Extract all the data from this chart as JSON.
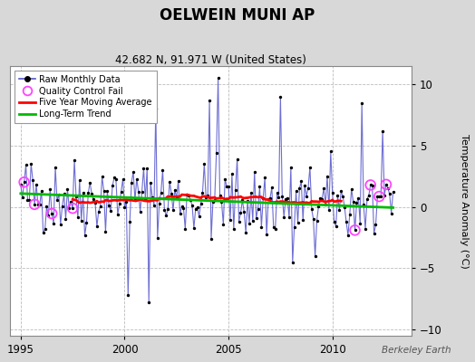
{
  "title": "OELWEIN MUNI AP",
  "subtitle": "42.682 N, 91.971 W (United States)",
  "ylabel": "Temperature Anomaly (°C)",
  "watermark": "Berkeley Earth",
  "xlim": [
    1994.5,
    2013.8
  ],
  "ylim": [
    -10.5,
    11.5
  ],
  "yticks": [
    -10,
    -5,
    0,
    5,
    10
  ],
  "xticks": [
    1995,
    2000,
    2005,
    2010
  ],
  "bg_color": "#d8d8d8",
  "plot_bg_color": "#ffffff",
  "grid_color": "#bbbbbb",
  "raw_line_color": "#5555cc",
  "raw_marker_color": "#000000",
  "ma_color": "#ff0000",
  "trend_color": "#00bb00",
  "qc_color": "#ff44ff",
  "seed": 42,
  "n_months": 216,
  "start_year": 1995.0
}
